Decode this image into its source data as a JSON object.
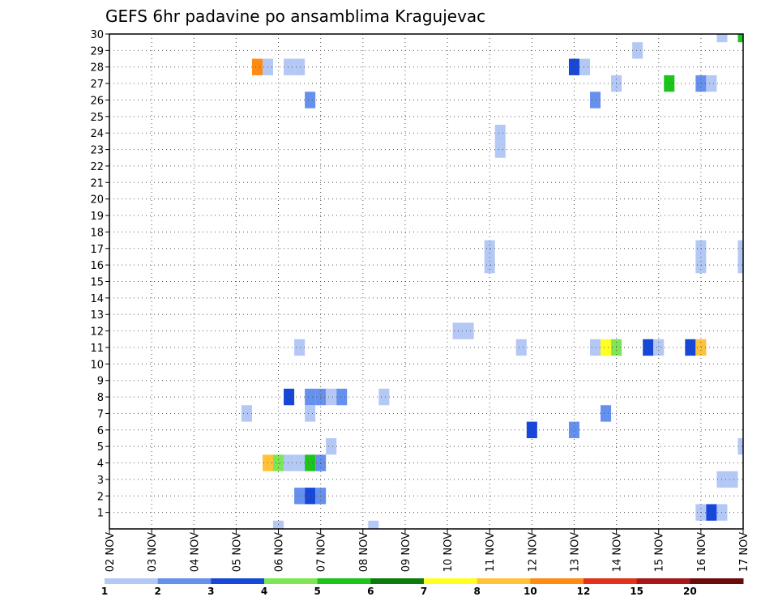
{
  "chart_data": {
    "type": "heatmap",
    "title": "GEFS 6hr padavine po ansamblima Kragujevac",
    "xlabel": "",
    "ylabel": "",
    "x_ticks": [
      "02 NOV",
      "03 NOV",
      "04 NOV",
      "05 NOV",
      "06 NOV",
      "07 NOV",
      "08 NOV",
      "09 NOV",
      "10 NOV",
      "11 NOV",
      "12 NOV",
      "13 NOV",
      "14 NOV",
      "15 NOV",
      "16 NOV",
      "17 NOV"
    ],
    "x_range_days": [
      2,
      17
    ],
    "y_range": [
      0,
      30
    ],
    "y_ticks": [
      1,
      2,
      3,
      4,
      5,
      6,
      7,
      8,
      9,
      10,
      11,
      12,
      13,
      14,
      15,
      16,
      17,
      18,
      19,
      20,
      21,
      22,
      23,
      24,
      25,
      26,
      27,
      28,
      29,
      30
    ],
    "grid": true,
    "legend": {
      "placement": "bottom",
      "labels": [
        "1",
        "2",
        "3",
        "4",
        "5",
        "6",
        "7",
        "8",
        "10",
        "12",
        "15",
        "20"
      ],
      "colors": [
        "#b4c8f5",
        "#6690ee",
        "#1747d8",
        "#7de655",
        "#1cc41c",
        "#0c7a0c",
        "#ffff22",
        "#ffc23a",
        "#ff8a14",
        "#e3321c",
        "#a81818",
        "#6a0c0c"
      ]
    },
    "cells": [
      {
        "day": 5.5,
        "member": 28,
        "level": 9
      },
      {
        "day": 5.75,
        "member": 28,
        "level": 1
      },
      {
        "day": 6.25,
        "member": 28,
        "level": 1
      },
      {
        "day": 6.5,
        "member": 28,
        "level": 1
      },
      {
        "day": 13.0,
        "member": 28,
        "level": 3
      },
      {
        "day": 13.25,
        "member": 28,
        "level": 1
      },
      {
        "day": 16.5,
        "member": 30,
        "level": 1
      },
      {
        "day": 17.0,
        "member": 30,
        "level": 5
      },
      {
        "day": 14.5,
        "member": 29,
        "level": 1
      },
      {
        "day": 14.0,
        "member": 27,
        "level": 1
      },
      {
        "day": 15.25,
        "member": 27,
        "level": 5
      },
      {
        "day": 16.0,
        "member": 27,
        "level": 2
      },
      {
        "day": 16.25,
        "member": 27,
        "level": 1
      },
      {
        "day": 6.75,
        "member": 26,
        "level": 2
      },
      {
        "day": 13.5,
        "member": 26,
        "level": 2
      },
      {
        "day": 11.25,
        "member": 24,
        "level": 1
      },
      {
        "day": 11.25,
        "member": 23,
        "level": 1
      },
      {
        "day": 11.0,
        "member": 17,
        "level": 1
      },
      {
        "day": 11.0,
        "member": 16,
        "level": 1
      },
      {
        "day": 16.0,
        "member": 17,
        "level": 1
      },
      {
        "day": 16.0,
        "member": 16,
        "level": 1
      },
      {
        "day": 17.0,
        "member": 17,
        "level": 1
      },
      {
        "day": 17.0,
        "member": 16,
        "level": 1
      },
      {
        "day": 10.25,
        "member": 12,
        "level": 1
      },
      {
        "day": 10.5,
        "member": 12,
        "level": 1
      },
      {
        "day": 6.5,
        "member": 11,
        "level": 1
      },
      {
        "day": 11.75,
        "member": 11,
        "level": 1
      },
      {
        "day": 13.5,
        "member": 11,
        "level": 1
      },
      {
        "day": 13.75,
        "member": 11,
        "level": 7
      },
      {
        "day": 14.0,
        "member": 11,
        "level": 4
      },
      {
        "day": 14.75,
        "member": 11,
        "level": 3
      },
      {
        "day": 15.0,
        "member": 11,
        "level": 1
      },
      {
        "day": 15.75,
        "member": 11,
        "level": 3
      },
      {
        "day": 16.0,
        "member": 11,
        "level": 8
      },
      {
        "day": 6.25,
        "member": 8,
        "level": 3
      },
      {
        "day": 6.75,
        "member": 8,
        "level": 2
      },
      {
        "day": 7.0,
        "member": 8,
        "level": 2
      },
      {
        "day": 7.25,
        "member": 8,
        "level": 1
      },
      {
        "day": 7.5,
        "member": 8,
        "level": 2
      },
      {
        "day": 8.5,
        "member": 8,
        "level": 1
      },
      {
        "day": 5.25,
        "member": 7,
        "level": 1
      },
      {
        "day": 6.75,
        "member": 7,
        "level": 1
      },
      {
        "day": 13.75,
        "member": 7,
        "level": 2
      },
      {
        "day": 12.0,
        "member": 6,
        "level": 3
      },
      {
        "day": 13.0,
        "member": 6,
        "level": 2
      },
      {
        "day": 7.25,
        "member": 5,
        "level": 1
      },
      {
        "day": 17.0,
        "member": 5,
        "level": 1
      },
      {
        "day": 5.75,
        "member": 4,
        "level": 8
      },
      {
        "day": 6.0,
        "member": 4,
        "level": 4
      },
      {
        "day": 6.25,
        "member": 4,
        "level": 1
      },
      {
        "day": 6.5,
        "member": 4,
        "level": 1
      },
      {
        "day": 6.75,
        "member": 4,
        "level": 5
      },
      {
        "day": 7.0,
        "member": 4,
        "level": 2
      },
      {
        "day": 16.5,
        "member": 3,
        "level": 1
      },
      {
        "day": 16.75,
        "member": 3,
        "level": 1
      },
      {
        "day": 6.5,
        "member": 2,
        "level": 2
      },
      {
        "day": 6.75,
        "member": 2,
        "level": 3
      },
      {
        "day": 7.0,
        "member": 2,
        "level": 2
      },
      {
        "day": 16.0,
        "member": 1,
        "level": 1
      },
      {
        "day": 16.25,
        "member": 1,
        "level": 3
      },
      {
        "day": 16.5,
        "member": 1,
        "level": 1
      },
      {
        "day": 6.0,
        "member": 0,
        "level": 1
      },
      {
        "day": 8.25,
        "member": 0,
        "level": 1
      }
    ]
  }
}
